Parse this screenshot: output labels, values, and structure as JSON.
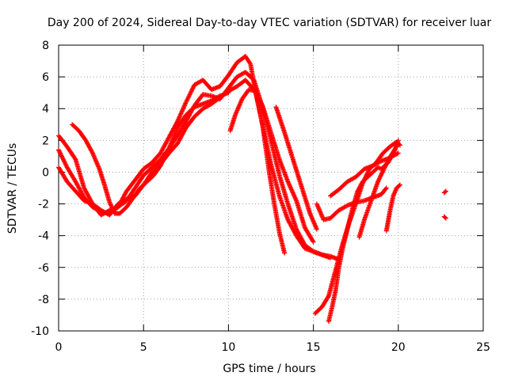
{
  "chart_data": {
    "type": "scatter",
    "title": "Day 200 of 2024, Sidereal Day-to-day VTEC variation (SDTVAR) for receiver luar",
    "xlabel": "GPS time / hours",
    "ylabel": "SDTVAR / TECUs",
    "xlim": [
      0,
      25
    ],
    "ylim": [
      -10,
      8
    ],
    "xticks": [
      "0",
      "5",
      "10",
      "15",
      "20",
      "25"
    ],
    "yticks": [
      "-10",
      "-8",
      "-6",
      "-4",
      "-2",
      "0",
      "2",
      "4",
      "6",
      "8"
    ],
    "grid": true,
    "marker": "+",
    "color": "#ff0000",
    "series": [
      {
        "x": [
          0.0,
          0.5,
          1.0,
          1.5,
          2.0,
          2.5,
          3.0,
          3.5,
          4.0,
          4.5,
          5.0,
          5.5,
          6.0,
          6.5,
          7.0,
          7.5,
          8.0,
          8.5,
          9.0,
          9.5,
          10.0,
          10.5,
          11.0,
          11.3,
          11.6,
          12.0,
          12.5,
          13.0,
          13.5,
          14.0,
          14.5,
          15.0,
          15.5,
          16.0
        ],
        "y": [
          2.3,
          1.6,
          0.8,
          -1.0,
          -2.0,
          -2.7,
          -2.4,
          -2.2,
          -1.2,
          -0.5,
          0.2,
          0.6,
          1.2,
          2.2,
          3.2,
          4.4,
          5.5,
          5.8,
          5.2,
          5.4,
          6.1,
          6.9,
          7.3,
          6.8,
          5.0,
          3.0,
          0.5,
          -1.5,
          -3.0,
          -4.0,
          -4.8,
          -5.0,
          -5.2,
          -5.4
        ]
      },
      {
        "x": [
          0.0,
          0.5,
          1.0,
          1.5,
          2.0,
          2.5,
          3.0,
          3.5,
          4.0,
          4.5,
          5.0,
          5.5,
          6.0,
          6.5,
          7.0,
          7.5,
          8.0,
          8.5,
          9.0,
          9.5,
          10.0,
          10.5,
          11.0,
          11.5,
          12.0,
          12.5,
          13.0,
          13.5,
          14.0,
          14.5,
          15.0,
          15.5,
          16.0,
          16.5
        ],
        "y": [
          1.4,
          0.3,
          -0.6,
          -1.6,
          -2.2,
          -2.5,
          -2.6,
          -2.2,
          -1.8,
          -1.0,
          -0.2,
          0.3,
          0.8,
          1.5,
          2.3,
          3.2,
          4.2,
          4.9,
          4.8,
          4.6,
          5.3,
          6.0,
          6.3,
          5.8,
          4.1,
          2.0,
          -0.2,
          -2.0,
          -3.6,
          -4.6,
          -5.0,
          -5.2,
          -5.3,
          -5.5
        ]
      },
      {
        "x": [
          0.0,
          0.5,
          1.0,
          1.5,
          2.0,
          2.5,
          3.0,
          3.5,
          4.0,
          4.5,
          5.0,
          5.5,
          6.0,
          6.5,
          7.0,
          7.5,
          8.0,
          8.5,
          9.0,
          9.5,
          10.0,
          10.5,
          11.0,
          11.5,
          12.0,
          12.5,
          13.0,
          13.5,
          14.0,
          14.5,
          15.0
        ],
        "y": [
          0.3,
          -0.6,
          -1.2,
          -1.8,
          -2.0,
          -2.4,
          -2.7,
          -2.0,
          -1.7,
          -1.5,
          -0.8,
          0.0,
          0.5,
          1.2,
          1.8,
          2.8,
          3.5,
          4.0,
          4.3,
          4.7,
          5.1,
          5.4,
          5.8,
          5.2,
          4.2,
          2.5,
          0.8,
          -0.6,
          -1.8,
          -3.5,
          -4.4
        ]
      },
      {
        "x": [
          0.8,
          1.2,
          1.6,
          2.0,
          2.4,
          2.7,
          3.0,
          3.3,
          3.6,
          4.0,
          4.4,
          4.8,
          5.2,
          5.6,
          6.0,
          6.5,
          7.0,
          7.5,
          8.0,
          8.5,
          9.0,
          9.5,
          10.0
        ],
        "y": [
          3.0,
          2.6,
          2.0,
          1.2,
          0.2,
          -0.8,
          -1.9,
          -2.6,
          -2.6,
          -2.2,
          -1.6,
          -1.0,
          -0.6,
          -0.2,
          0.4,
          1.5,
          2.8,
          3.6,
          4.1,
          4.3,
          4.5,
          4.8,
          5.0
        ]
      },
      {
        "x": [
          10.1,
          10.4,
          10.8,
          11.2,
          11.6,
          12.0,
          12.4,
          12.7,
          13.0,
          13.3
        ],
        "y": [
          2.6,
          3.6,
          4.6,
          5.2,
          5.1,
          3.0,
          0.0,
          -2.0,
          -3.8,
          -5.1
        ]
      },
      {
        "x": [
          12.8,
          13.3,
          13.8,
          14.3,
          14.8,
          15.2
        ],
        "y": [
          4.1,
          2.5,
          0.8,
          -0.9,
          -2.6,
          -3.6
        ]
      },
      {
        "x": [
          15.1,
          15.5,
          15.9,
          16.3,
          16.7,
          17.1,
          17.5,
          17.9,
          18.3,
          18.7,
          19.1,
          19.5,
          19.9,
          20.1
        ],
        "y": [
          -8.9,
          -8.5,
          -7.8,
          -6.2,
          -4.6,
          -3.2,
          -2.0,
          -0.7,
          0.2,
          0.6,
          1.2,
          1.6,
          1.9,
          1.7
        ]
      },
      {
        "x": [
          15.9,
          16.1,
          16.3,
          16.5,
          16.7,
          17.0,
          17.3,
          17.6,
          17.9,
          18.2,
          18.5,
          18.8,
          19.0,
          19.4,
          19.8,
          20.0
        ],
        "y": [
          -9.4,
          -8.5,
          -7.5,
          -6.0,
          -4.9,
          -3.6,
          -2.3,
          -1.2,
          -0.6,
          -0.3,
          0.0,
          0.3,
          0.2,
          0.6,
          1.4,
          2.0
        ]
      },
      {
        "x": [
          15.2,
          15.6,
          16.0,
          16.5,
          17.0,
          17.5,
          18.0,
          18.5,
          19.0,
          19.3
        ],
        "y": [
          -2.0,
          -3.0,
          -2.9,
          -2.4,
          -2.1,
          -1.9,
          -1.8,
          -1.6,
          -1.4,
          -1.0
        ]
      },
      {
        "x": [
          16.0,
          16.5,
          17.0,
          17.5,
          18.0,
          18.5,
          19.0,
          19.5,
          20.0
        ],
        "y": [
          -1.5,
          -1.1,
          -0.6,
          -0.3,
          0.2,
          0.4,
          0.7,
          0.9,
          1.2
        ]
      },
      {
        "x": [
          17.7,
          18.0,
          18.4,
          18.8,
          19.2,
          19.6,
          20.0
        ],
        "y": [
          -4.1,
          -3.0,
          -1.8,
          -0.6,
          0.3,
          1.1,
          1.8
        ]
      },
      {
        "x": [
          19.3,
          19.5,
          19.7,
          19.9,
          20.1
        ],
        "y": [
          -3.7,
          -2.5,
          -1.5,
          -1.0,
          -0.8
        ]
      },
      {
        "x": [
          22.7,
          22.8
        ],
        "y": [
          -1.3,
          -1.2
        ]
      },
      {
        "x": [
          22.7,
          22.8
        ],
        "y": [
          -2.8,
          -2.9
        ]
      }
    ]
  }
}
